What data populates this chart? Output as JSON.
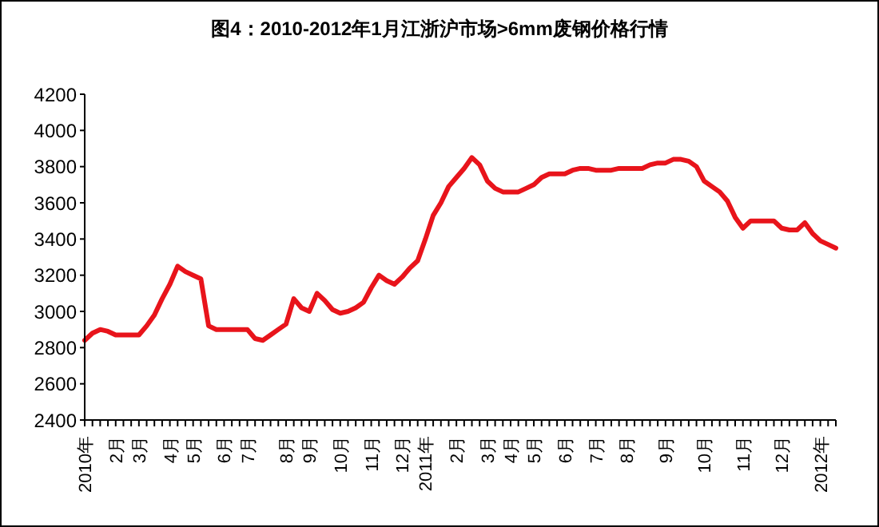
{
  "chart_data": {
    "type": "line",
    "title": "图4：2010-2012年1月江浙沪市场>6mm废钢价格行情",
    "categories": [
      "2010年",
      null,
      null,
      null,
      "2月",
      null,
      null,
      "3月",
      null,
      null,
      null,
      "4月",
      null,
      null,
      "5月",
      null,
      null,
      null,
      "6月",
      null,
      null,
      "7月",
      null,
      null,
      null,
      null,
      "8月",
      null,
      null,
      "9月",
      null,
      null,
      null,
      "10月",
      null,
      null,
      null,
      "11月",
      null,
      null,
      null,
      "12月",
      null,
      null,
      "2011年",
      null,
      null,
      null,
      "2月",
      null,
      null,
      null,
      "3月",
      null,
      null,
      "4月",
      null,
      null,
      "5月",
      null,
      null,
      null,
      "6月",
      null,
      null,
      null,
      "7月",
      null,
      null,
      null,
      "8月",
      null,
      null,
      null,
      null,
      "9月",
      null,
      null,
      null,
      null,
      "10月",
      null,
      null,
      null,
      null,
      "11月",
      null,
      null,
      null,
      null,
      "12月",
      null,
      null,
      null,
      null,
      "2012年",
      null,
      null
    ],
    "series": [
      {
        "color": "#e8141b",
        "values": [
          2840,
          2880,
          2900,
          2890,
          2870,
          2870,
          2870,
          2870,
          2920,
          2980,
          3070,
          3150,
          3250,
          3220,
          3200,
          3180,
          2920,
          2900,
          2900,
          2900,
          2900,
          2900,
          2850,
          2840,
          2870,
          2900,
          2930,
          3070,
          3020,
          3000,
          3100,
          3060,
          3010,
          2990,
          3000,
          3020,
          3050,
          3130,
          3200,
          3170,
          3150,
          3190,
          3240,
          3280,
          3400,
          3530,
          3600,
          3690,
          3740,
          3790,
          3850,
          3810,
          3720,
          3680,
          3660,
          3660,
          3660,
          3680,
          3700,
          3740,
          3760,
          3760,
          3760,
          3780,
          3790,
          3790,
          3780,
          3780,
          3780,
          3790,
          3790,
          3790,
          3790,
          3810,
          3820,
          3820,
          3840,
          3840,
          3830,
          3800,
          3720,
          3690,
          3660,
          3610,
          3520,
          3460,
          3500,
          3500,
          3500,
          3500,
          3460,
          3450,
          3450,
          3490,
          3430,
          3390,
          3370,
          3350
        ]
      }
    ],
    "ylim": [
      2400,
      4200
    ],
    "yticks": [
      2400,
      2600,
      2800,
      3000,
      3200,
      3400,
      3600,
      3800,
      4000,
      4200
    ],
    "grid": false,
    "legend": false,
    "marker": "none",
    "line_style": "solid"
  }
}
